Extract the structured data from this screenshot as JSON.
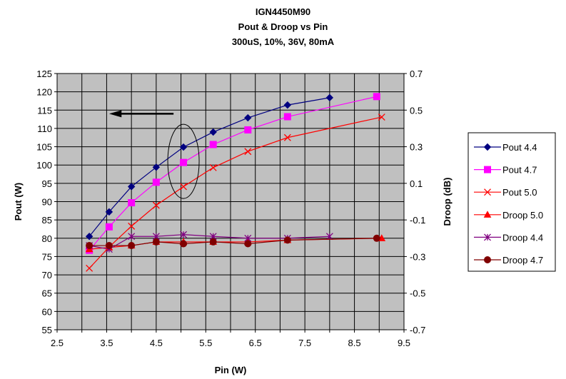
{
  "title": [
    "IGN4450M90",
    "Pout & Droop vs Pin",
    "300uS, 10%, 36V, 80mA"
  ],
  "chart_data": {
    "type": "line",
    "xlabel": "Pin (W)",
    "ylabel": "Pout (W)",
    "y2label": "Droop (dB)",
    "xlim": [
      2.5,
      9.5
    ],
    "ylim": [
      55,
      125
    ],
    "y2lim": [
      -0.7,
      0.7
    ],
    "xticks": [
      "2.5",
      "3.5",
      "4.5",
      "5.5",
      "6.5",
      "7.5",
      "8.5",
      "9.5"
    ],
    "yticks": [
      "55",
      "60",
      "65",
      "70",
      "75",
      "80",
      "85",
      "90",
      "95",
      "100",
      "105",
      "110",
      "115",
      "120",
      "125"
    ],
    "y2ticks": [
      "-0.7",
      "-0.5",
      "-0.3",
      "-0.1",
      "0.1",
      "0.3",
      "0.5",
      "0.7"
    ],
    "grid": true,
    "legend_position": "right",
    "series": [
      {
        "name": "Pout 4.4",
        "axis": "left",
        "color": "#000080",
        "marker": "diamond",
        "x": [
          3.15,
          3.55,
          4.0,
          4.5,
          5.05,
          5.65,
          6.35,
          7.15,
          8.0
        ],
        "y": [
          80.5,
          87.2,
          94.1,
          99.4,
          104.9,
          109.0,
          112.9,
          116.4,
          118.4
        ]
      },
      {
        "name": "Pout 4.7",
        "axis": "left",
        "color": "#FF00FF",
        "marker": "square",
        "x": [
          3.15,
          3.55,
          4.0,
          4.5,
          5.05,
          5.65,
          6.35,
          7.15,
          8.95
        ],
        "y": [
          76.7,
          83.1,
          89.7,
          95.3,
          100.7,
          105.6,
          109.6,
          113.2,
          118.7
        ]
      },
      {
        "name": "Pout 5.0",
        "axis": "left",
        "color": "#FF0000",
        "marker": "x",
        "x": [
          3.15,
          3.55,
          4.0,
          4.5,
          5.05,
          5.65,
          6.35,
          7.15,
          9.05
        ],
        "y": [
          71.8,
          77.6,
          83.3,
          89.0,
          94.1,
          99.3,
          103.7,
          107.5,
          113.1
        ]
      },
      {
        "name": "Droop 5.0",
        "axis": "right",
        "color": "#FF0000",
        "marker": "triangle",
        "x": [
          3.15,
          3.55,
          4.0,
          4.5,
          5.05,
          5.65,
          6.35,
          7.15,
          9.05
        ],
        "y": [
          -0.26,
          -0.25,
          -0.24,
          -0.22,
          -0.22,
          -0.22,
          -0.22,
          -0.21,
          -0.2
        ]
      },
      {
        "name": "Droop 4.4",
        "axis": "right",
        "color": "#800080",
        "marker": "star",
        "x": [
          3.15,
          3.55,
          4.0,
          4.5,
          5.05,
          5.65,
          6.35,
          7.15,
          8.0
        ],
        "y": [
          -0.24,
          -0.26,
          -0.19,
          -0.19,
          -0.18,
          -0.19,
          -0.2,
          -0.2,
          -0.19
        ]
      },
      {
        "name": "Droop 4.7",
        "axis": "right",
        "color": "#800000",
        "marker": "circle",
        "x": [
          3.15,
          3.55,
          4.0,
          4.5,
          5.05,
          5.65,
          6.35,
          7.15,
          8.95
        ],
        "y": [
          -0.24,
          -0.24,
          -0.24,
          -0.22,
          -0.23,
          -0.22,
          -0.23,
          -0.21,
          -0.2
        ]
      }
    ]
  }
}
